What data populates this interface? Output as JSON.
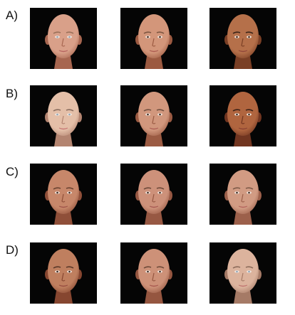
{
  "rows": [
    {
      "label": "A)",
      "faces": [
        {
          "skin": "#d9a089",
          "shade": "#a76650",
          "lip": "#b56460",
          "brow": "#9a7059",
          "eyes": "light"
        },
        {
          "skin": "#d3967a",
          "shade": "#9c5a41",
          "lip": "#ac5d52",
          "brow": "#7d5641",
          "eyes": "dark"
        },
        {
          "skin": "#b5704a",
          "shade": "#7a3f25",
          "lip": "#90473a",
          "brow": "#3a2418",
          "eyes": "dark"
        }
      ]
    },
    {
      "label": "B)",
      "faces": [
        {
          "skin": "#e4bfa8",
          "shade": "#b38470",
          "lip": "#c77875",
          "brow": "#8a6d5e",
          "eyes": "light"
        },
        {
          "skin": "#d1977d",
          "shade": "#9b5b43",
          "lip": "#ad5f55",
          "brow": "#725040",
          "eyes": "dark"
        },
        {
          "skin": "#b0653f",
          "shade": "#713520",
          "lip": "#8b4233",
          "brow": "#3c2116",
          "eyes": "dark"
        }
      ]
    },
    {
      "label": "C)",
      "faces": [
        {
          "skin": "#c7876a",
          "shade": "#8f4f39",
          "lip": "#9f544a",
          "brow": "#6a4331",
          "eyes": "dark"
        },
        {
          "skin": "#cd917a",
          "shade": "#975843",
          "lip": "#a75a52",
          "brow": "#6e4a3a",
          "eyes": "dark"
        },
        {
          "skin": "#d19b83",
          "shade": "#9c604b",
          "lip": "#b4655d",
          "brow": "#7d5a48",
          "eyes": "dark"
        }
      ]
    },
    {
      "label": "D)",
      "faces": [
        {
          "skin": "#bf7f5f",
          "shade": "#864630",
          "lip": "#974d40",
          "brow": "#5a3828",
          "eyes": "dark"
        },
        {
          "skin": "#cd9178",
          "shade": "#955640",
          "lip": "#a8594f",
          "brow": "#6e4a39",
          "eyes": "dark"
        },
        {
          "skin": "#dcb39d",
          "shade": "#a57a66",
          "lip": "#c07570",
          "brow": "#8c6b5a",
          "eyes": "light"
        }
      ]
    }
  ]
}
